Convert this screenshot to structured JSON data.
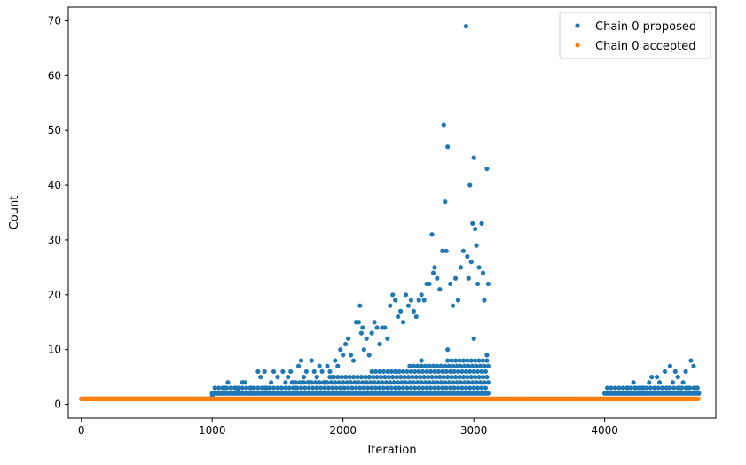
{
  "chart_data": {
    "type": "scatter",
    "title": "",
    "xlabel": "Iteration",
    "ylabel": "Count",
    "xlim": [
      -100,
      4850
    ],
    "ylim": [
      -2.5,
      72.5
    ],
    "xticks": [
      0,
      1000,
      2000,
      3000,
      4000
    ],
    "yticks": [
      0,
      10,
      20,
      30,
      40,
      50,
      60,
      70
    ],
    "legend_position": "top-right",
    "grid": false,
    "series": [
      {
        "name": "Chain 0 proposed",
        "color": "#1f77b4",
        "marker": "dot",
        "baseline": {
          "y": 1,
          "x_range": [
            0,
            1000
          ]
        },
        "points": [
          [
            1000,
            2
          ],
          [
            1020,
            2
          ],
          [
            1050,
            2
          ],
          [
            1080,
            2
          ],
          [
            1100,
            3
          ],
          [
            1120,
            4
          ],
          [
            1150,
            2
          ],
          [
            1180,
            3
          ],
          [
            1200,
            2
          ],
          [
            1230,
            4
          ],
          [
            1250,
            4
          ],
          [
            1280,
            2
          ],
          [
            1300,
            3
          ],
          [
            1320,
            2
          ],
          [
            1350,
            6
          ],
          [
            1370,
            5
          ],
          [
            1400,
            6
          ],
          [
            1420,
            3
          ],
          [
            1450,
            4
          ],
          [
            1470,
            6
          ],
          [
            1500,
            5
          ],
          [
            1520,
            2
          ],
          [
            1540,
            6
          ],
          [
            1560,
            4
          ],
          [
            1580,
            5
          ],
          [
            1600,
            6
          ],
          [
            1620,
            4
          ],
          [
            1640,
            3
          ],
          [
            1660,
            7
          ],
          [
            1680,
            8
          ],
          [
            1700,
            5
          ],
          [
            1720,
            6
          ],
          [
            1740,
            4
          ],
          [
            1760,
            8
          ],
          [
            1780,
            6
          ],
          [
            1800,
            5
          ],
          [
            1820,
            7
          ],
          [
            1840,
            6
          ],
          [
            1860,
            4
          ],
          [
            1880,
            7
          ],
          [
            1900,
            6
          ],
          [
            1920,
            5
          ],
          [
            1940,
            8
          ],
          [
            1960,
            7
          ],
          [
            1980,
            10
          ],
          [
            2000,
            9
          ],
          [
            2020,
            11
          ],
          [
            2040,
            12
          ],
          [
            2060,
            9
          ],
          [
            2080,
            8
          ],
          [
            2100,
            15
          ],
          [
            2120,
            15
          ],
          [
            2130,
            18
          ],
          [
            2140,
            13
          ],
          [
            2150,
            14
          ],
          [
            2160,
            10
          ],
          [
            2180,
            12
          ],
          [
            2200,
            9
          ],
          [
            2220,
            13
          ],
          [
            2240,
            15
          ],
          [
            2260,
            14
          ],
          [
            2280,
            11
          ],
          [
            2300,
            14
          ],
          [
            2320,
            14
          ],
          [
            2340,
            12
          ],
          [
            2360,
            18
          ],
          [
            2380,
            20
          ],
          [
            2400,
            19
          ],
          [
            2420,
            16
          ],
          [
            2440,
            17
          ],
          [
            2460,
            15
          ],
          [
            2480,
            20
          ],
          [
            2500,
            18
          ],
          [
            2520,
            19
          ],
          [
            2540,
            17
          ],
          [
            2560,
            16
          ],
          [
            2580,
            19
          ],
          [
            2600,
            20
          ],
          [
            2620,
            19
          ],
          [
            2640,
            22
          ],
          [
            2660,
            22
          ],
          [
            2680,
            31
          ],
          [
            2690,
            24
          ],
          [
            2700,
            25
          ],
          [
            2720,
            23
          ],
          [
            2740,
            21
          ],
          [
            2760,
            28
          ],
          [
            2770,
            51
          ],
          [
            2780,
            37
          ],
          [
            2790,
            28
          ],
          [
            2800,
            47
          ],
          [
            2820,
            22
          ],
          [
            2840,
            18
          ],
          [
            2860,
            23
          ],
          [
            2880,
            19
          ],
          [
            2900,
            25
          ],
          [
            2920,
            28
          ],
          [
            2940,
            69
          ],
          [
            2950,
            27
          ],
          [
            2960,
            23
          ],
          [
            2970,
            40
          ],
          [
            2980,
            26
          ],
          [
            2990,
            33
          ],
          [
            3000,
            45
          ],
          [
            3010,
            32
          ],
          [
            3020,
            29
          ],
          [
            3030,
            22
          ],
          [
            3040,
            25
          ],
          [
            3060,
            33
          ],
          [
            3070,
            24
          ],
          [
            3080,
            19
          ],
          [
            3100,
            43
          ],
          [
            3110,
            22
          ],
          [
            1000,
            1.5
          ],
          [
            1200,
            2.5
          ],
          [
            1400,
            3
          ],
          [
            1600,
            2
          ],
          [
            1800,
            3
          ],
          [
            2000,
            4
          ],
          [
            2200,
            5
          ],
          [
            2400,
            6
          ],
          [
            2600,
            8
          ],
          [
            2800,
            10
          ],
          [
            3000,
            12
          ],
          [
            3100,
            9
          ],
          [
            4000,
            2
          ],
          [
            4050,
            2
          ],
          [
            4100,
            2
          ],
          [
            4120,
            2
          ],
          [
            4140,
            3
          ],
          [
            4160,
            2
          ],
          [
            4180,
            3
          ],
          [
            4200,
            2
          ],
          [
            4220,
            4
          ],
          [
            4240,
            3
          ],
          [
            4260,
            2
          ],
          [
            4280,
            3
          ],
          [
            4300,
            3
          ],
          [
            4320,
            2
          ],
          [
            4340,
            4
          ],
          [
            4360,
            5
          ],
          [
            4380,
            3
          ],
          [
            4400,
            5
          ],
          [
            4420,
            4
          ],
          [
            4440,
            3
          ],
          [
            4460,
            6
          ],
          [
            4480,
            3
          ],
          [
            4500,
            7
          ],
          [
            4520,
            4
          ],
          [
            4540,
            6
          ],
          [
            4560,
            5
          ],
          [
            4580,
            3
          ],
          [
            4600,
            4
          ],
          [
            4620,
            6
          ],
          [
            4640,
            3
          ],
          [
            4660,
            8
          ],
          [
            4680,
            7
          ],
          [
            4700,
            3
          ],
          [
            4720,
            2
          ]
        ]
      },
      {
        "name": "Chain 0 accepted",
        "color": "#ff7f0e",
        "marker": "dot",
        "baseline": {
          "y": 1,
          "x_range": [
            0,
            4720
          ]
        }
      }
    ]
  }
}
